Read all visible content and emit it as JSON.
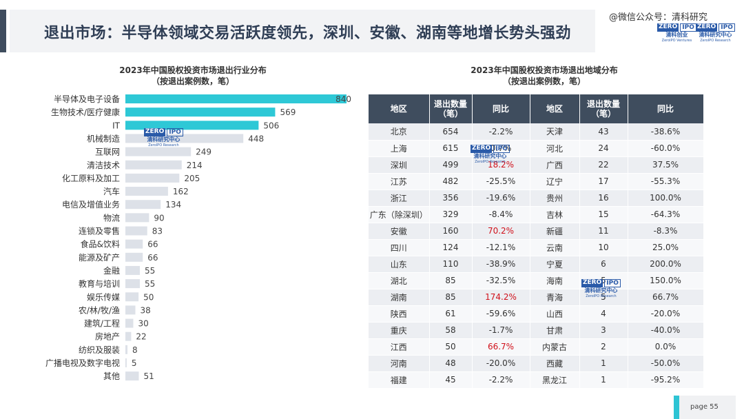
{
  "header": {
    "title": "退出市场：半导体领域交易活跃度领先，深圳、安徽、湖南等地增长势头强劲",
    "watermark": "@微信公众号：清科研究"
  },
  "logo": {
    "zero": "ZERO",
    "ipo": "IPO",
    "cn": "清科创业",
    "en": "ZeroIPO Ventures",
    "cn2": "清科研究中心",
    "en2": "ZeroIPO Research"
  },
  "chart_data": {
    "type": "bar",
    "orientation": "horizontal",
    "title": "2023年中国股权投资市场退出行业分布",
    "subtitle": "（按退出案例数，笔）",
    "categories": [
      "半导体及电子设备",
      "生物技术/医疗健康",
      "IT",
      "机械制造",
      "互联网",
      "清洁技术",
      "化工原料及加工",
      "汽车",
      "电信及增值业务",
      "物流",
      "连锁及零售",
      "食品&饮料",
      "能源及矿产",
      "金融",
      "教育与培训",
      "娱乐传媒",
      "农/林/牧/渔",
      "建筑/工程",
      "房地产",
      "纺织及服装",
      "广播电视及数字电视",
      "其他"
    ],
    "values": [
      840,
      569,
      506,
      448,
      249,
      214,
      205,
      162,
      134,
      90,
      83,
      66,
      66,
      55,
      55,
      50,
      38,
      30,
      22,
      8,
      5,
      51
    ],
    "highlight_count": 3,
    "colors": {
      "highlight": "#2ec8d6",
      "normal": "#dde1e8"
    }
  },
  "table": {
    "title": "2023年中国股权投资市场退出地域分布",
    "subtitle": "（按退出案例数，笔）",
    "headers": [
      "地区",
      "退出数量（笔）",
      "同比",
      "地区",
      "退出数量（笔）",
      "同比"
    ],
    "rows": [
      [
        "北京",
        "654",
        "-2.2%",
        "天津",
        "43",
        "-38.6%"
      ],
      [
        "上海",
        "615",
        "0.7%",
        "河北",
        "24",
        "-60.0%"
      ],
      [
        "深圳",
        "499",
        "18.2%",
        "广西",
        "22",
        "37.5%"
      ],
      [
        "江苏",
        "482",
        "-25.5%",
        "辽宁",
        "17",
        "-55.3%"
      ],
      [
        "浙江",
        "356",
        "-19.6%",
        "贵州",
        "16",
        "100.0%"
      ],
      [
        "广东（除深圳）",
        "329",
        "-8.4%",
        "吉林",
        "15",
        "-64.3%"
      ],
      [
        "安徽",
        "160",
        "70.2%",
        "新疆",
        "11",
        "-8.3%"
      ],
      [
        "四川",
        "124",
        "-12.1%",
        "云南",
        "10",
        "25.0%"
      ],
      [
        "山东",
        "110",
        "-38.9%",
        "宁夏",
        "6",
        "200.0%"
      ],
      [
        "湖北",
        "85",
        "-32.5%",
        "海南",
        "5",
        "150.0%"
      ],
      [
        "湖南",
        "85",
        "174.2%",
        "青海",
        "5",
        "66.7%"
      ],
      [
        "陕西",
        "61",
        "-59.6%",
        "山西",
        "4",
        "-20.0%"
      ],
      [
        "重庆",
        "58",
        "-1.7%",
        "甘肃",
        "3",
        "-40.0%"
      ],
      [
        "江西",
        "50",
        "66.7%",
        "内蒙古",
        "2",
        "0.0%"
      ],
      [
        "河南",
        "48",
        "-20.0%",
        "西藏",
        "1",
        "-50.0%"
      ],
      [
        "福建",
        "45",
        "-2.2%",
        "黑龙江",
        "1",
        "-95.2%"
      ]
    ],
    "highlighted_regions": [
      "深圳",
      "安徽",
      "湖南",
      "江西"
    ],
    "highlight_color": "#d0101a"
  },
  "footer": {
    "page_label": "page  55"
  }
}
